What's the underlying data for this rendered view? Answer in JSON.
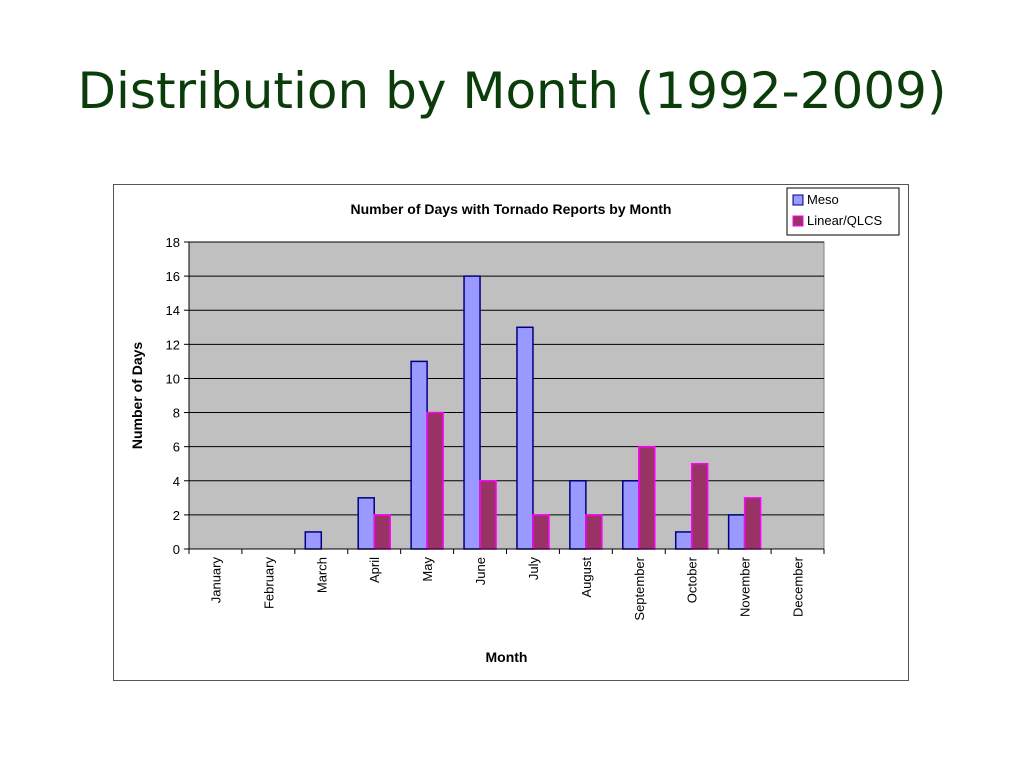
{
  "slide": {
    "title": "Distribution by Month (1992-2009)"
  },
  "chart_data": {
    "type": "bar",
    "title": "Number of Days with Tornado Reports by Month",
    "xlabel": "Month",
    "ylabel": "Number of Days",
    "ylim": [
      0,
      18
    ],
    "yticks": [
      0,
      2,
      4,
      6,
      8,
      10,
      12,
      14,
      16,
      18
    ],
    "grid": true,
    "legend_position": "top-right",
    "categories": [
      "January",
      "February",
      "March",
      "April",
      "May",
      "June",
      "July",
      "August",
      "September",
      "October",
      "November",
      "December"
    ],
    "series": [
      {
        "name": "Meso",
        "color": "#9999ff",
        "values": [
          0,
          0,
          1,
          3,
          11,
          16,
          13,
          4,
          4,
          1,
          2,
          0
        ]
      },
      {
        "name": "Linear/QLCS",
        "color": "#993366",
        "values": [
          0,
          0,
          0,
          2,
          8,
          4,
          2,
          2,
          6,
          5,
          3,
          0
        ]
      }
    ],
    "colors": {
      "plot_background": "#c0c0c0",
      "meso_border": "#000080",
      "linear_border": "#ff00ff"
    }
  }
}
